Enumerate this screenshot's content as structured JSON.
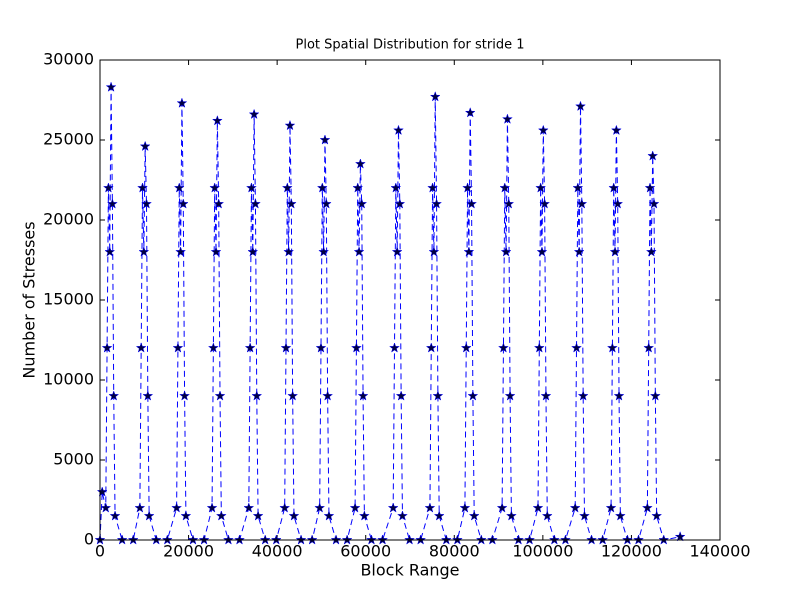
{
  "chart_data": {
    "type": "line",
    "title": "Plot Spatial Distribution for stride 1",
    "x_label": "Block Range",
    "y_label": "Number of Stresses",
    "x": [
      0,
      500,
      1300,
      1600,
      1900,
      2200,
      2500,
      2800,
      3100,
      3400,
      5000,
      7500,
      9000,
      9300,
      9600,
      9900,
      10200,
      10500,
      10800,
      11100,
      12700,
      15200,
      17300,
      17600,
      17900,
      18200,
      18500,
      18800,
      19100,
      19400,
      21000,
      23500,
      25300,
      25600,
      25900,
      26200,
      26500,
      26800,
      27100,
      27400,
      29000,
      31500,
      33600,
      33900,
      34200,
      34500,
      34800,
      35100,
      35400,
      35700,
      37300,
      39800,
      41700,
      42000,
      42300,
      42600,
      42900,
      43200,
      43500,
      43800,
      45400,
      47900,
      49600,
      49900,
      50200,
      50500,
      50800,
      51100,
      51400,
      51700,
      53300,
      55800,
      57600,
      57900,
      58200,
      58500,
      58800,
      59100,
      59400,
      59700,
      61300,
      63800,
      66200,
      66500,
      66800,
      67100,
      67400,
      67700,
      68000,
      68300,
      69900,
      72400,
      74500,
      74800,
      75100,
      75400,
      75700,
      76000,
      76300,
      76600,
      78200,
      80700,
      82400,
      82700,
      83000,
      83300,
      83600,
      83900,
      84200,
      84500,
      86100,
      88600,
      90800,
      91100,
      91400,
      91700,
      92000,
      92300,
      92600,
      92900,
      94500,
      97000,
      98900,
      99200,
      99500,
      99800,
      100100,
      100400,
      100700,
      101000,
      102600,
      105100,
      107300,
      107600,
      107900,
      108200,
      108500,
      108800,
      109100,
      109400,
      111000,
      113500,
      115400,
      115700,
      116000,
      116300,
      116600,
      116900,
      117200,
      117500,
      119100,
      121600,
      123600,
      123900,
      124200,
      124500,
      124800,
      125100,
      125400,
      125700,
      127300,
      131000
    ],
    "values": [
      0,
      3000,
      2000,
      12000,
      22000,
      18000,
      28300,
      21000,
      9000,
      1500,
      0,
      0,
      2000,
      12000,
      22000,
      18000,
      24600,
      21000,
      9000,
      1500,
      0,
      0,
      2000,
      12000,
      22000,
      18000,
      27300,
      21000,
      9000,
      1500,
      0,
      0,
      2000,
      12000,
      22000,
      18000,
      26200,
      21000,
      9000,
      1500,
      0,
      0,
      2000,
      12000,
      22000,
      18000,
      26600,
      21000,
      9000,
      1500,
      0,
      0,
      2000,
      12000,
      22000,
      18000,
      25900,
      21000,
      9000,
      1500,
      0,
      0,
      2000,
      12000,
      22000,
      18000,
      25000,
      21000,
      9000,
      1500,
      0,
      0,
      2000,
      12000,
      22000,
      18000,
      23500,
      21000,
      9000,
      1500,
      0,
      0,
      2000,
      12000,
      22000,
      18000,
      25600,
      21000,
      9000,
      1500,
      0,
      0,
      2000,
      12000,
      22000,
      18000,
      27700,
      21000,
      9000,
      1500,
      0,
      0,
      2000,
      12000,
      22000,
      18000,
      26700,
      21000,
      9000,
      1500,
      0,
      0,
      2000,
      12000,
      22000,
      18000,
      26300,
      21000,
      9000,
      1500,
      0,
      0,
      2000,
      12000,
      22000,
      18000,
      25600,
      21000,
      9000,
      1500,
      0,
      0,
      2000,
      12000,
      22000,
      18000,
      27100,
      21000,
      9000,
      1500,
      0,
      0,
      2000,
      12000,
      22000,
      18000,
      25600,
      21000,
      9000,
      1500,
      0,
      0,
      2000,
      12000,
      22000,
      18000,
      24000,
      21000,
      9000,
      1500,
      0,
      200
    ],
    "color": "#0000ff",
    "marker_color": "#000040",
    "line_style": "dashed",
    "xlim": [
      0,
      140000
    ],
    "xticks": [
      0,
      20000,
      40000,
      60000,
      80000,
      100000,
      120000,
      140000
    ],
    "ylim": [
      0,
      30000
    ],
    "yticks": [
      0,
      5000,
      10000,
      15000,
      20000,
      25000,
      30000
    ]
  }
}
